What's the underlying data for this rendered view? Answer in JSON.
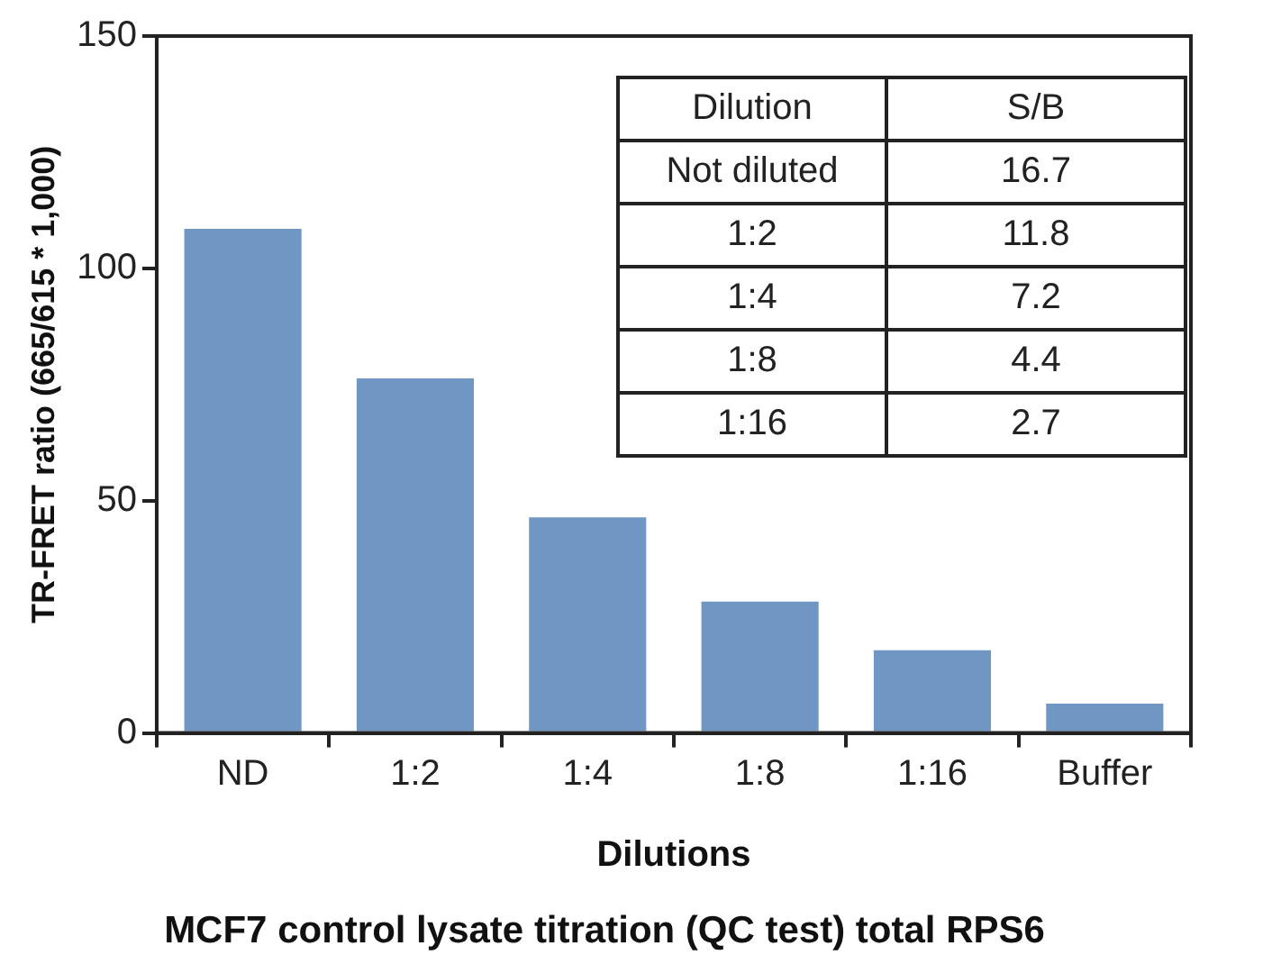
{
  "chart_data": {
    "type": "bar",
    "title": "MCF7 control lysate titration (QC test) total RPS6",
    "xlabel": "Dilutions",
    "ylabel": "TR-FRET ratio (665/615 * 1,000)",
    "categories": [
      "ND",
      "1:2",
      "1:4",
      "1:8",
      "1:16",
      "Buffer"
    ],
    "values": [
      108.5,
      76.3,
      46.4,
      28.3,
      17.8,
      6.3
    ],
    "color": "#7096c4",
    "ylim": [
      0,
      150
    ],
    "yticks": [
      0,
      50,
      100,
      150
    ],
    "grid": false,
    "legend": false,
    "annotations": [
      "Dilution",
      "S/B",
      "Not diluted",
      "16.7",
      "1:2",
      "11.8",
      "1:4",
      "7.2",
      "1:8",
      "4.4",
      "1:16",
      "2.7"
    ]
  }
}
